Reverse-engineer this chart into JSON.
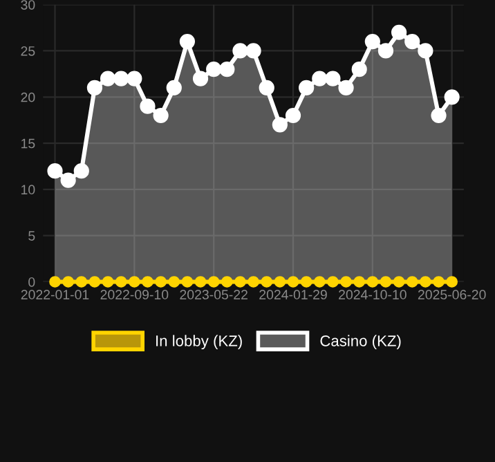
{
  "chart_data": {
    "type": "area",
    "categories": [
      "2022-01-01",
      null,
      null,
      null,
      null,
      null,
      "2022-09-10",
      null,
      null,
      null,
      null,
      null,
      "2023-05-22",
      null,
      null,
      null,
      null,
      null,
      "2024-01-29",
      null,
      null,
      null,
      null,
      null,
      "2024-10-10",
      null,
      null,
      null,
      null,
      null,
      "2025-06-20"
    ],
    "series": [
      {
        "name": "In lobby (KZ)",
        "type": "line",
        "color": "#ffd400",
        "values": [
          0,
          0,
          0,
          0,
          0,
          0,
          0,
          0,
          0,
          0,
          0,
          0,
          0,
          0,
          0,
          0,
          0,
          0,
          0,
          0,
          0,
          0,
          0,
          0,
          0,
          0,
          0,
          0,
          0,
          0,
          0
        ]
      },
      {
        "name": "Casino (KZ)",
        "color": "#ffffff",
        "values": [
          12,
          11,
          12,
          21,
          22,
          22,
          22,
          19,
          18,
          21,
          26,
          22,
          23,
          23,
          25,
          25,
          21,
          17,
          18,
          21,
          22,
          22,
          21,
          23,
          26,
          25,
          27,
          26,
          25,
          18,
          20
        ]
      }
    ],
    "ylim": [
      0,
      30
    ],
    "yticks": [
      0,
      5,
      10,
      15,
      20,
      25,
      30
    ],
    "grid": true,
    "legend": "bottom",
    "marker": "circle",
    "line_style": "solid"
  }
}
